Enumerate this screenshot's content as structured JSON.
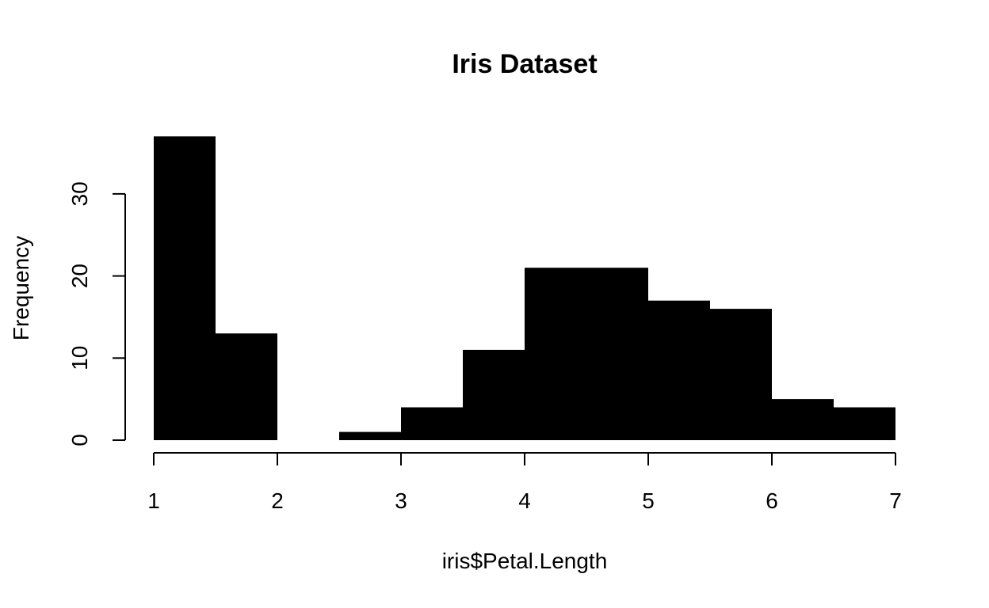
{
  "chart_data": {
    "type": "bar",
    "title": "Iris Dataset",
    "xlabel": "iris$Petal.Length",
    "ylabel": "Frequency",
    "bins": [
      {
        "x0": 1.0,
        "x1": 1.5,
        "count": 37
      },
      {
        "x0": 1.5,
        "x1": 2.0,
        "count": 13
      },
      {
        "x0": 2.0,
        "x1": 2.5,
        "count": 0
      },
      {
        "x0": 2.5,
        "x1": 3.0,
        "count": 1
      },
      {
        "x0": 3.0,
        "x1": 3.5,
        "count": 4
      },
      {
        "x0": 3.5,
        "x1": 4.0,
        "count": 11
      },
      {
        "x0": 4.0,
        "x1": 4.5,
        "count": 21
      },
      {
        "x0": 4.5,
        "x1": 5.0,
        "count": 21
      },
      {
        "x0": 5.0,
        "x1": 5.5,
        "count": 17
      },
      {
        "x0": 5.5,
        "x1": 6.0,
        "count": 16
      },
      {
        "x0": 6.0,
        "x1": 6.5,
        "count": 5
      },
      {
        "x0": 6.5,
        "x1": 7.0,
        "count": 4
      }
    ],
    "xticks": [
      1,
      2,
      3,
      4,
      5,
      6,
      7
    ],
    "yticks": [
      0,
      10,
      20,
      30
    ],
    "xlim": [
      1,
      7
    ],
    "ylim": [
      0,
      37
    ],
    "bar_color": "#000000",
    "grid": false,
    "legend": "none"
  }
}
